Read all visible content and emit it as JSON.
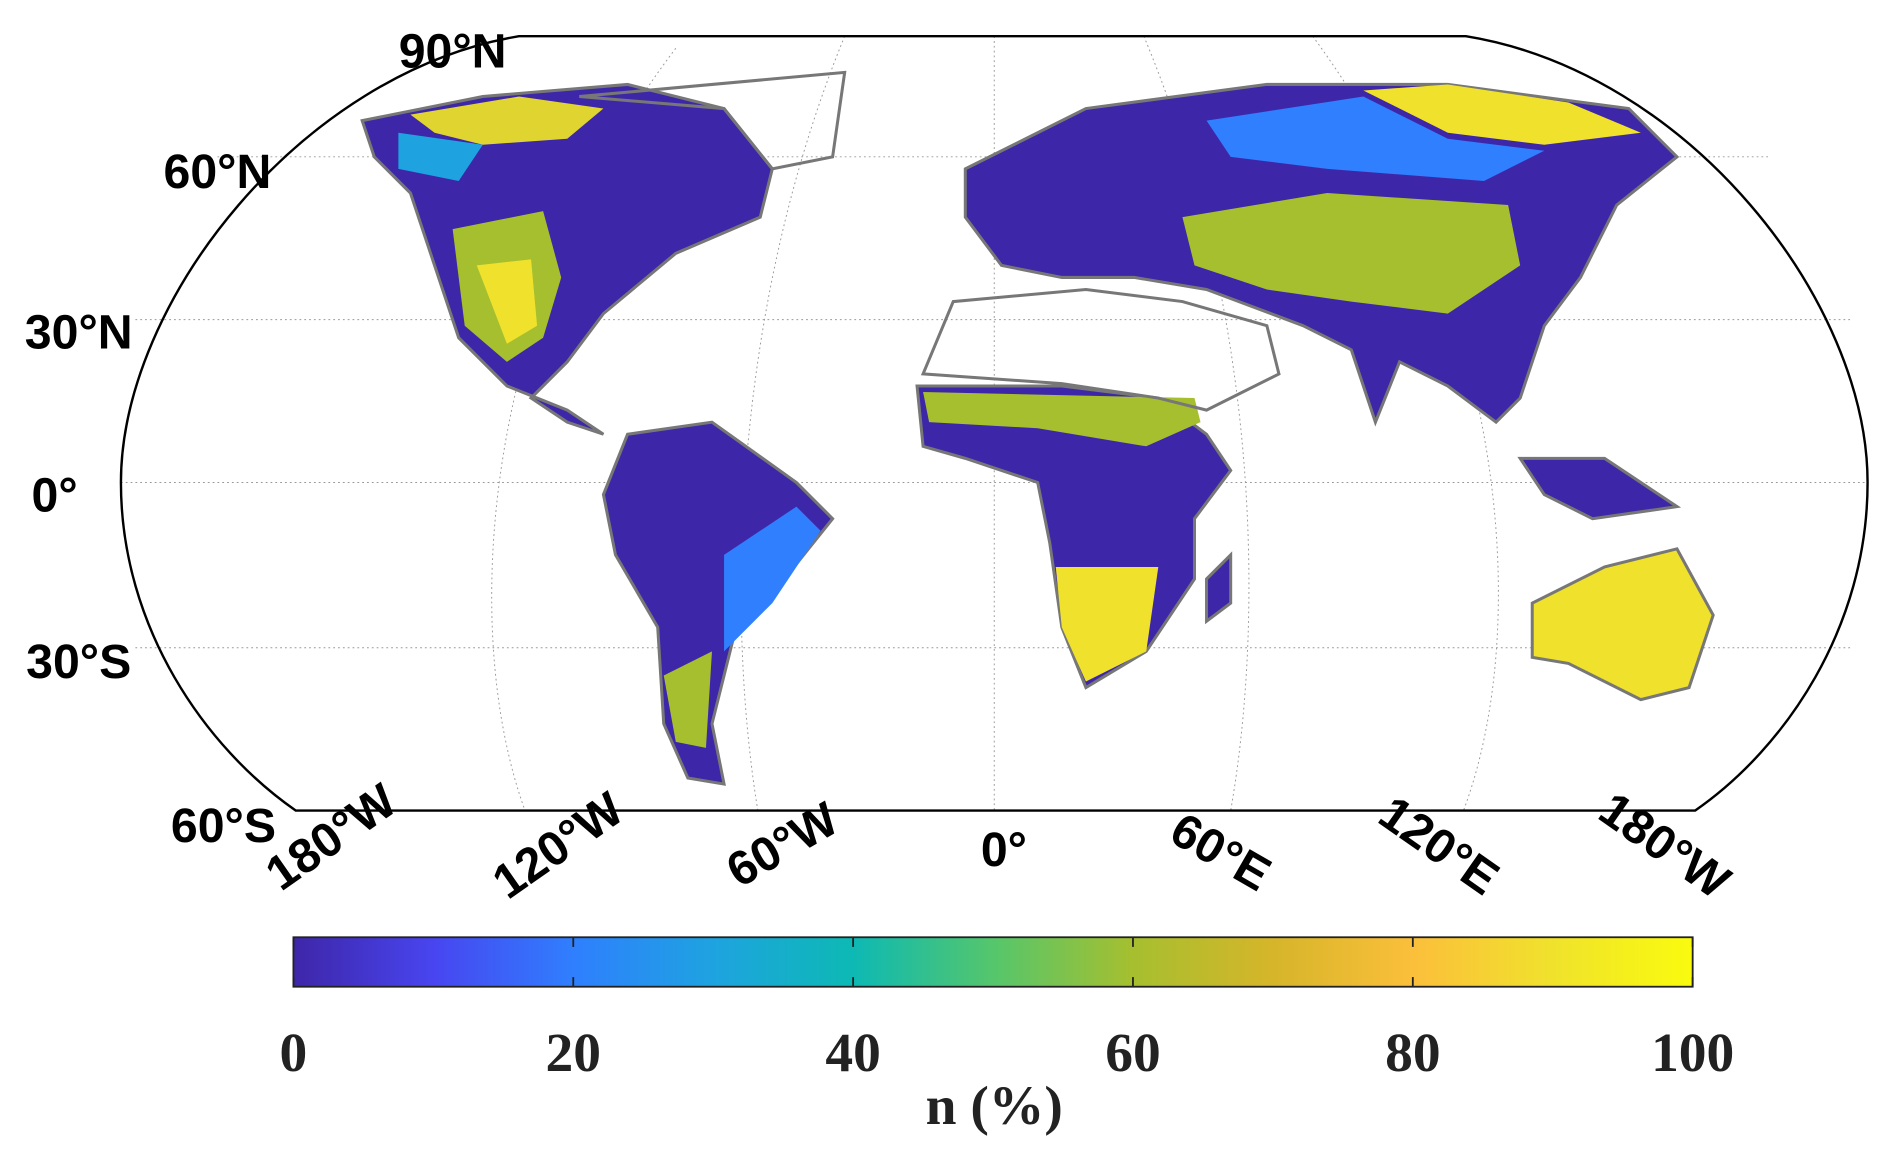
{
  "map": {
    "lat_labels": [
      "90°N",
      "60°N",
      "30°N",
      "0°",
      "30°S",
      "60°S"
    ],
    "lon_labels": [
      "180°W",
      "120°W",
      "60°W",
      "0°",
      "60°E",
      "120°E",
      "180°W"
    ]
  },
  "colorbar": {
    "label": "n (%)",
    "lim": [
      0,
      100
    ],
    "ticks": [
      0,
      20,
      40,
      60,
      80,
      100
    ],
    "colors": [
      "#3e26a8",
      "#4845f0",
      "#2f7ffe",
      "#1ea3e0",
      "#0db9b4",
      "#55c66c",
      "#a6bf2f",
      "#d6b52a",
      "#fbbf3b",
      "#f0e22c",
      "#f9fb0e"
    ]
  }
}
